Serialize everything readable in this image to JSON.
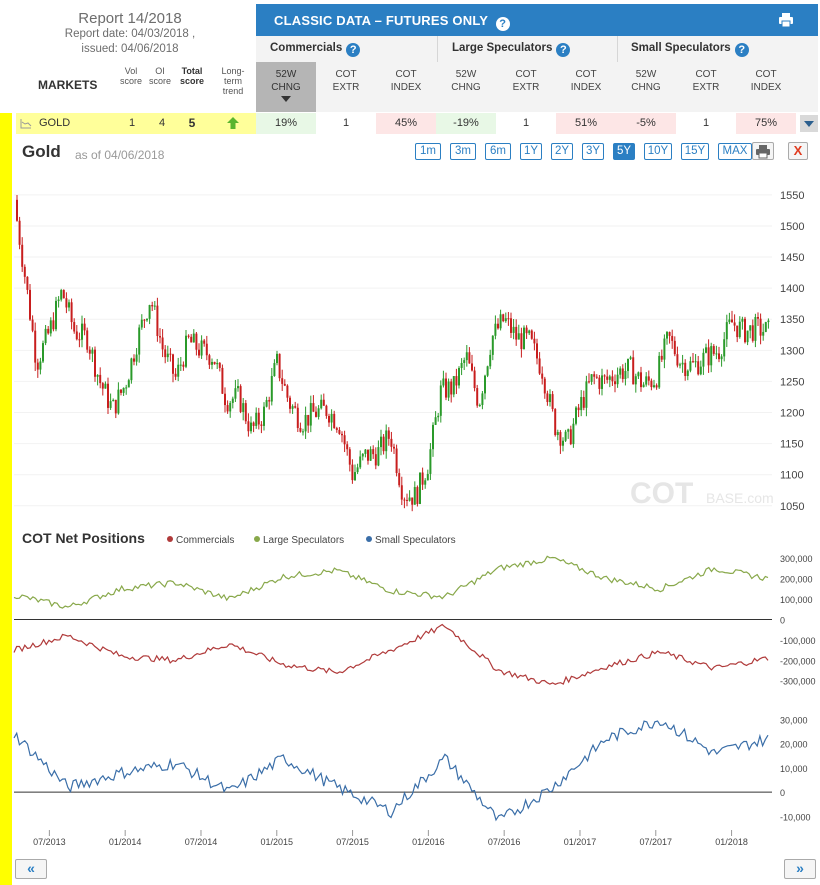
{
  "report": {
    "title": "Report 14/2018",
    "report_date_line": "Report date: 04/03/2018 ,",
    "issued_line": "issued: 04/06/2018"
  },
  "classic": {
    "title": "CLASSIC DATA – FUTURES ONLY",
    "help": "?",
    "groups": [
      "Commercials",
      "Large Speculators",
      "Small Speculators"
    ],
    "sub_columns": [
      {
        "line1": "52W",
        "line2": "CHNG"
      },
      {
        "line1": "COT",
        "line2": "EXTR"
      },
      {
        "line1": "COT",
        "line2": "INDEX"
      },
      {
        "line1": "52W",
        "line2": "CHNG"
      },
      {
        "line1": "COT",
        "line2": "EXTR"
      },
      {
        "line1": "COT",
        "line2": "INDEX"
      },
      {
        "line1": "52W",
        "line2": "CHNG"
      },
      {
        "line1": "COT",
        "line2": "EXTR"
      },
      {
        "line1": "COT",
        "line2": "INDEX"
      }
    ]
  },
  "markets_header": {
    "markets": "MARKETS",
    "vol": [
      "Vol",
      "score"
    ],
    "oi": [
      "OI",
      "score"
    ],
    "total": [
      "Total",
      "score"
    ],
    "trend": [
      "Long-",
      "term",
      "trend"
    ]
  },
  "gold_row": {
    "name": "GOLD",
    "vol_score": "1",
    "oi_score": "4",
    "total_score": "5",
    "trend": "up",
    "values": [
      "19%",
      "1",
      "45%",
      "-19%",
      "1",
      "51%",
      "-5%",
      "1",
      "75%"
    ]
  },
  "chart": {
    "title": "Gold",
    "asof": "as of 04/06/2018",
    "ranges": [
      "1m",
      "3m",
      "6m",
      "1Y",
      "2Y",
      "3Y",
      "5Y",
      "10Y",
      "15Y",
      "MAX"
    ],
    "active_range": "5Y",
    "close_label": "X",
    "watermark_left": "COT",
    "watermark_right": "BASE.com",
    "nav_left": "«",
    "nav_right": "»"
  },
  "cot": {
    "title": "COT Net Positions",
    "legend": [
      {
        "name": "Commercials",
        "color": "#b03a3a"
      },
      {
        "name": "Large Speculators",
        "color": "#88a84a"
      },
      {
        "name": "Small Speculators",
        "color": "#3a6ea8"
      }
    ]
  },
  "colors": {
    "accent": "#2b7fc3",
    "up_candle": "#2a9a2a",
    "down_candle": "#c81e1e",
    "commercials": "#b03a3a",
    "large_specs": "#88a84a",
    "small_specs": "#3a6ea8"
  },
  "chart_data": [
    {
      "type": "candlestick",
      "title": "Gold",
      "x_ticks": [
        "07/2013",
        "01/2014",
        "07/2014",
        "01/2015",
        "07/2015",
        "01/2016",
        "07/2016",
        "01/2017",
        "07/2017",
        "01/2018"
      ],
      "x_range": [
        "04/2013",
        "04/2018"
      ],
      "y_ticks": [
        1050,
        1100,
        1150,
        1200,
        1250,
        1300,
        1350,
        1400,
        1450,
        1500,
        1550
      ],
      "ylim": [
        1040,
        1590
      ],
      "weekly_close_approx": [
        [
          "04/2013",
          1570
        ],
        [
          "05/2013",
          1430
        ],
        [
          "06/2013",
          1280
        ],
        [
          "07/2013",
          1330
        ],
        [
          "08/2013",
          1395
        ],
        [
          "09/2013",
          1330
        ],
        [
          "10/2013",
          1320
        ],
        [
          "11/2013",
          1250
        ],
        [
          "12/2013",
          1205
        ],
        [
          "01/2014",
          1245
        ],
        [
          "02/2014",
          1320
        ],
        [
          "03/2014",
          1385
        ],
        [
          "04/2014",
          1300
        ],
        [
          "05/2014",
          1255
        ],
        [
          "06/2014",
          1315
        ],
        [
          "07/2014",
          1300
        ],
        [
          "08/2014",
          1290
        ],
        [
          "09/2014",
          1220
        ],
        [
          "10/2014",
          1225
        ],
        [
          "11/2014",
          1170
        ],
        [
          "12/2014",
          1200
        ],
        [
          "01/2015",
          1280
        ],
        [
          "02/2015",
          1215
        ],
        [
          "03/2015",
          1185
        ],
        [
          "04/2015",
          1200
        ],
        [
          "05/2015",
          1205
        ],
        [
          "06/2015",
          1180
        ],
        [
          "07/2015",
          1100
        ],
        [
          "08/2015",
          1130
        ],
        [
          "09/2015",
          1135
        ],
        [
          "10/2015",
          1165
        ],
        [
          "11/2015",
          1070
        ],
        [
          "12/2015",
          1065
        ],
        [
          "01/2016",
          1120
        ],
        [
          "02/2016",
          1235
        ],
        [
          "03/2016",
          1240
        ],
        [
          "04/2016",
          1290
        ],
        [
          "05/2016",
          1215
        ],
        [
          "06/2016",
          1320
        ],
        [
          "07/2016",
          1350
        ],
        [
          "08/2016",
          1320
        ],
        [
          "09/2016",
          1315
        ],
        [
          "10/2016",
          1270
        ],
        [
          "11/2016",
          1180
        ],
        [
          "12/2016",
          1150
        ],
        [
          "01/2017",
          1210
        ],
        [
          "02/2017",
          1255
        ],
        [
          "03/2017",
          1250
        ],
        [
          "04/2017",
          1265
        ],
        [
          "05/2017",
          1270
        ],
        [
          "06/2017",
          1245
        ],
        [
          "07/2017",
          1255
        ],
        [
          "08/2017",
          1320
        ],
        [
          "09/2017",
          1280
        ],
        [
          "10/2017",
          1275
        ],
        [
          "11/2017",
          1290
        ],
        [
          "12/2017",
          1300
        ],
        [
          "01/2018",
          1345
        ],
        [
          "02/2018",
          1330
        ],
        [
          "03/2018",
          1335
        ],
        [
          "04/2018",
          1330
        ]
      ]
    },
    {
      "type": "line",
      "title": "COT Net Positions",
      "y_ticks": [
        -300000,
        -200000,
        -100000,
        0,
        100000,
        200000,
        300000
      ],
      "series": [
        {
          "name": "Large Speculators",
          "values_approx": [
            120000,
            60000,
            150000,
            180000,
            100000,
            210000,
            240000,
            140000,
            110000,
            250000,
            300000,
            200000,
            150000,
            250000,
            200000
          ]
        },
        {
          "name": "Commercials",
          "values_approx": [
            -150000,
            -80000,
            -180000,
            -200000,
            -120000,
            -220000,
            -260000,
            -150000,
            -30000,
            -250000,
            -320000,
            -230000,
            -160000,
            -240000,
            -190000
          ]
        }
      ]
    },
    {
      "type": "line",
      "title": "Small Speculators",
      "y_ticks": [
        -10000,
        0,
        10000,
        20000,
        30000
      ],
      "series": [
        {
          "name": "Small Speculators",
          "values_approx": [
            24000,
            2000,
            8000,
            12000,
            0,
            14000,
            2000,
            -8000,
            14000,
            -12000,
            2000,
            22000,
            30000,
            16000,
            22000
          ]
        }
      ]
    }
  ]
}
